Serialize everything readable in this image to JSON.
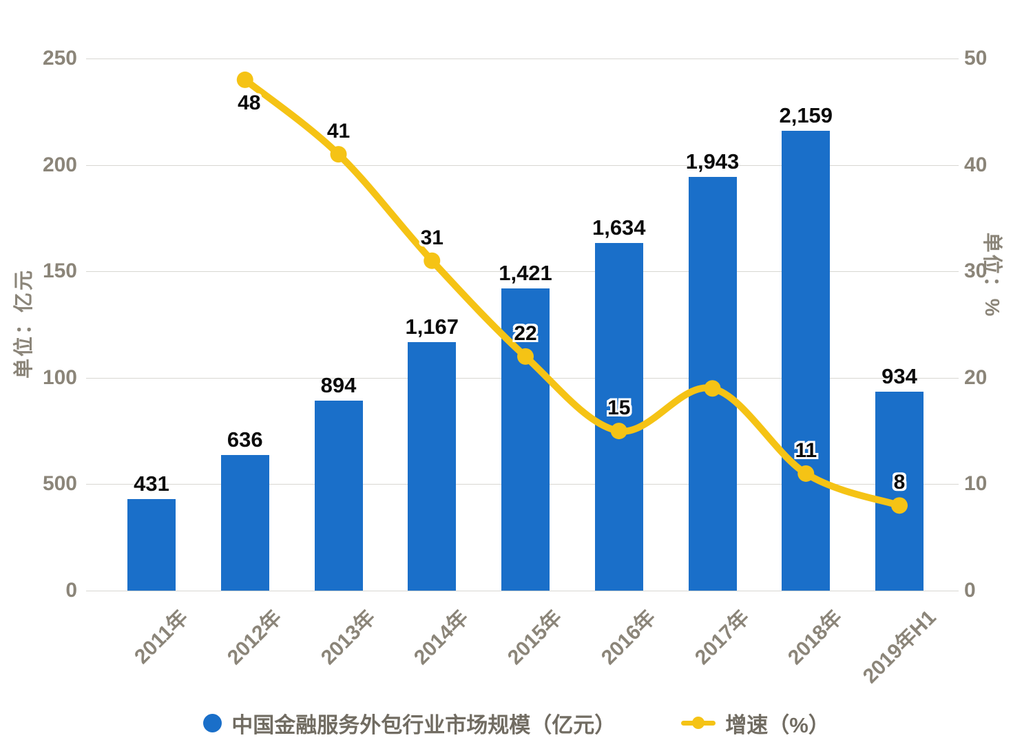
{
  "chart_data": {
    "type": "bar+line",
    "categories": [
      "2011年",
      "2012年",
      "2013年",
      "2014年",
      "2015年",
      "2016年",
      "2017年",
      "2018年",
      "2019年H1"
    ],
    "series": [
      {
        "name": "中国金融服务外包行业市场规模（亿元）",
        "kind": "bar",
        "axis": "left",
        "color": "#1A6FC9",
        "values": [
          431,
          636,
          894,
          1167,
          1421,
          1634,
          1943,
          2159,
          934
        ],
        "labels": [
          "431",
          "636",
          "894",
          "1,167",
          "1,421",
          "1,634",
          "1,943",
          "2,159",
          "934"
        ]
      },
      {
        "name": "增速（%）",
        "kind": "line",
        "axis": "right",
        "color": "#F5C315",
        "values": [
          null,
          48,
          41,
          31,
          22,
          15,
          19,
          11,
          8
        ],
        "labels": [
          null,
          "48",
          "41",
          "31",
          "22",
          "15",
          null,
          "11",
          "8"
        ]
      }
    ],
    "left_axis": {
      "title": "单位：亿元",
      "tick_labels": [
        "250",
        "200",
        "150",
        "100",
        "500",
        "0"
      ],
      "effective_range": [
        0,
        2500
      ]
    },
    "right_axis": {
      "title": "单位：%",
      "tick_labels": [
        "50",
        "40",
        "30",
        "20",
        "10",
        "0"
      ],
      "range": [
        0,
        50
      ]
    },
    "grid": true,
    "legend": {
      "position": "bottom",
      "items": [
        {
          "label": "中国金融服务外包行业市场规模（亿元）",
          "marker": "circle",
          "color": "#1A6FC9"
        },
        {
          "label": "增速（%）",
          "marker": "line-dot",
          "color": "#F5C315"
        }
      ]
    }
  },
  "colors": {
    "bar": "#1A6FC9",
    "line": "#F5C315",
    "grid": "#d8d7d2",
    "axis_text": "#8b8579",
    "value_text": "#0b0b0b",
    "legend_text": "#716c62",
    "background": "#ffffff"
  }
}
